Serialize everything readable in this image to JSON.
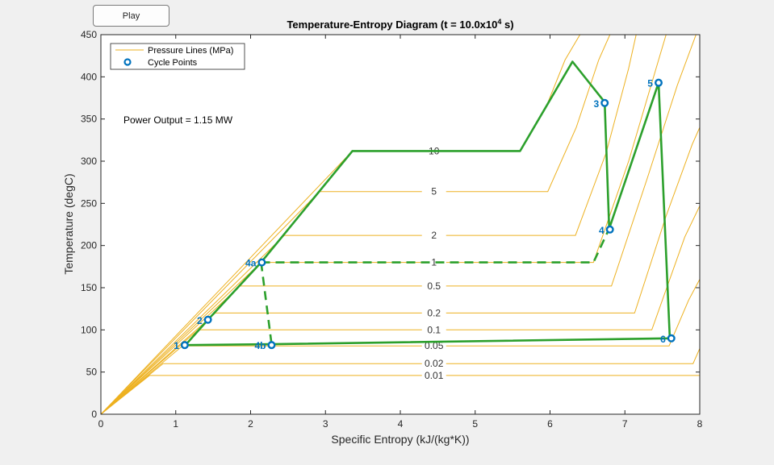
{
  "controls": {
    "play_label": "Play"
  },
  "colors": {
    "pressure_line": "#EDB120",
    "cycle": "#2ca02c",
    "point": "#0072BD",
    "axis": "#262626"
  },
  "chart_data": {
    "type": "line",
    "title_main": "Temperature-Entropy  Diagram  (t  =  10.0x10",
    "title_exp": "4",
    "title_tail": "  s)",
    "xlabel": "Specific Entropy (kJ/(kg*K))",
    "ylabel": "Temperature (degC)",
    "xlim": [
      0,
      8
    ],
    "ylim": [
      0,
      450
    ],
    "xticks": [
      0,
      1,
      2,
      3,
      4,
      5,
      6,
      7,
      8
    ],
    "yticks": [
      0,
      50,
      100,
      150,
      200,
      250,
      300,
      350,
      400,
      450
    ],
    "grid": false,
    "legend": {
      "position": "top-left",
      "entries": [
        {
          "label": "Pressure Lines (MPa)",
          "kind": "line"
        },
        {
          "label": "Cycle Points",
          "kind": "marker"
        }
      ]
    },
    "annotation": "Power Output = 1.15 MW",
    "pressure_lines": [
      {
        "label": "10",
        "label_at": [
          4.45,
          312
        ],
        "points": [
          [
            0,
            0
          ],
          [
            3.36,
            312
          ],
          [
            5.6,
            312
          ],
          [
            5.95,
            365
          ],
          [
            6.2,
            420
          ],
          [
            6.4,
            450
          ]
        ]
      },
      {
        "label": "5",
        "label_at": [
          4.45,
          264
        ],
        "points": [
          [
            0,
            0
          ],
          [
            2.92,
            264
          ],
          [
            5.97,
            264
          ],
          [
            6.35,
            340
          ],
          [
            6.65,
            420
          ],
          [
            6.8,
            450
          ]
        ]
      },
      {
        "label": "2",
        "label_at": [
          4.45,
          212
        ],
        "points": [
          [
            0,
            0
          ],
          [
            2.45,
            212
          ],
          [
            6.34,
            212
          ],
          [
            6.75,
            310
          ],
          [
            7.05,
            410
          ],
          [
            7.15,
            450
          ]
        ]
      },
      {
        "label": "1",
        "label_at": [
          4.45,
          180
        ],
        "points": [
          [
            0,
            0
          ],
          [
            2.14,
            180
          ],
          [
            6.58,
            180
          ],
          [
            7.05,
            300
          ],
          [
            7.45,
            420
          ],
          [
            7.55,
            450
          ]
        ]
      },
      {
        "label": "0.5",
        "label_at": [
          4.45,
          152
        ],
        "points": [
          [
            0,
            0
          ],
          [
            1.86,
            152
          ],
          [
            6.82,
            152
          ],
          [
            7.3,
            280
          ],
          [
            7.7,
            390
          ],
          [
            7.95,
            450
          ]
        ]
      },
      {
        "label": "0.2",
        "label_at": [
          4.45,
          120
        ],
        "points": [
          [
            0,
            0
          ],
          [
            1.53,
            120
          ],
          [
            7.13,
            120
          ],
          [
            7.55,
            235
          ],
          [
            7.9,
            320
          ],
          [
            8,
            340
          ]
        ]
      },
      {
        "label": "0.1",
        "label_at": [
          4.45,
          100
        ],
        "points": [
          [
            0,
            0
          ],
          [
            1.3,
            100
          ],
          [
            7.36,
            100
          ],
          [
            7.8,
            210
          ],
          [
            8,
            247
          ]
        ]
      },
      {
        "label": "0.05",
        "label_at": [
          4.45,
          81
        ],
        "points": [
          [
            0,
            0
          ],
          [
            1.09,
            81
          ],
          [
            7.59,
            81
          ],
          [
            7.85,
            135
          ],
          [
            8,
            160
          ]
        ]
      },
      {
        "label": "0.02",
        "label_at": [
          4.45,
          60
        ],
        "points": [
          [
            0,
            0
          ],
          [
            0.83,
            60
          ],
          [
            7.91,
            60
          ],
          [
            8,
            78
          ]
        ]
      },
      {
        "label": "0.01",
        "label_at": [
          4.45,
          46
        ],
        "points": [
          [
            0,
            0
          ],
          [
            0.65,
            46
          ],
          [
            8,
            46
          ]
        ]
      }
    ],
    "cycle_path": [
      [
        1.13,
        82
      ],
      [
        1.43,
        112
      ],
      [
        2.14,
        180
      ],
      [
        3.36,
        312
      ],
      [
        5.6,
        312
      ],
      [
        6.3,
        418
      ],
      [
        6.73,
        370
      ],
      [
        6.79,
        220
      ],
      [
        7.45,
        393
      ],
      [
        7.6,
        90
      ],
      [
        2.28,
        83
      ],
      [
        1.13,
        82
      ]
    ],
    "cycle_dashed": [
      [
        [
          2.14,
          180
        ],
        [
          6.58,
          180
        ],
        [
          6.79,
          220
        ]
      ],
      [
        [
          2.14,
          180
        ],
        [
          2.28,
          83
        ]
      ]
    ],
    "points": [
      {
        "label": "1",
        "x": 1.12,
        "y": 82
      },
      {
        "label": "2",
        "x": 1.43,
        "y": 112
      },
      {
        "label": "4a",
        "x": 2.15,
        "y": 180
      },
      {
        "label": "4b",
        "x": 2.28,
        "y": 82
      },
      {
        "label": "3",
        "x": 6.73,
        "y": 369
      },
      {
        "label": "4",
        "x": 6.8,
        "y": 219
      },
      {
        "label": "5",
        "x": 7.45,
        "y": 393
      },
      {
        "label": "6",
        "x": 7.62,
        "y": 90
      }
    ]
  }
}
